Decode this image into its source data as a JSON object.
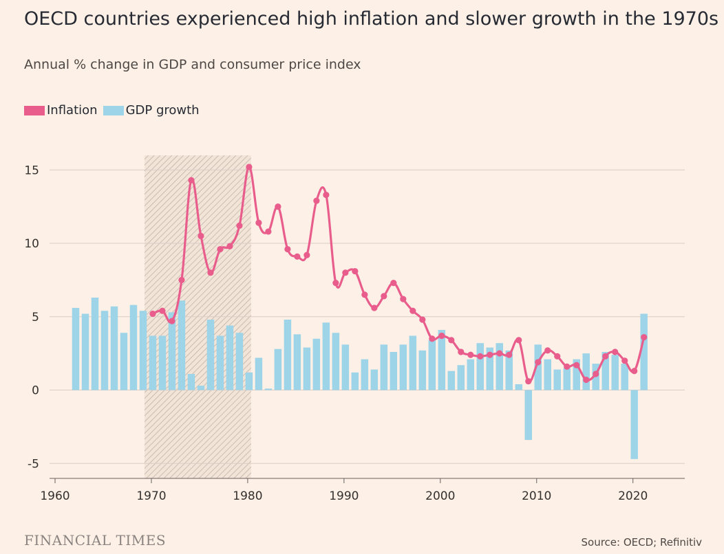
{
  "title": "OECD countries experienced high inflation and slower growth in the 1970s",
  "subtitle": "Annual % change in GDP and consumer price index",
  "brand": "FINANCIAL TIMES",
  "source": "Source: OECD; Refinitiv",
  "colors": {
    "background": "#fdf0e6",
    "inflation": "#e95d8c",
    "gdp": "#9dd4e8",
    "grid": "#d9cdc4",
    "shade_hatch": "#b8aca3"
  },
  "chart_data": {
    "type": "bar",
    "legend": [
      {
        "name": "Inflation",
        "color": "#e95d8c"
      },
      {
        "name": "GDP growth",
        "color": "#9dd4e8"
      }
    ],
    "legend_position": "top-left",
    "grid": true,
    "xlim": [
      1960,
      2025
    ],
    "ylim": [
      -6,
      16
    ],
    "x_ticks": [
      1960,
      1970,
      1980,
      1990,
      2000,
      2010,
      2020
    ],
    "y_ticks": [
      -5,
      0,
      5,
      10,
      15
    ],
    "shaded_region": [
      1970,
      1981
    ],
    "series": [
      {
        "name": "GDP growth",
        "type": "bar",
        "x": [
          1962,
          1963,
          1964,
          1965,
          1966,
          1967,
          1968,
          1969,
          1970,
          1971,
          1972,
          1973,
          1974,
          1975,
          1976,
          1977,
          1978,
          1979,
          1980,
          1981,
          1982,
          1983,
          1984,
          1985,
          1986,
          1987,
          1988,
          1989,
          1990,
          1991,
          1992,
          1993,
          1994,
          1995,
          1996,
          1997,
          1998,
          1999,
          2000,
          2001,
          2002,
          2003,
          2004,
          2005,
          2006,
          2007,
          2008,
          2009,
          2010,
          2011,
          2012,
          2013,
          2014,
          2015,
          2016,
          2017,
          2018,
          2019,
          2020,
          2021
        ],
        "values": [
          5.6,
          5.2,
          6.3,
          5.4,
          5.7,
          3.9,
          5.8,
          5.4,
          3.7,
          3.7,
          5.3,
          6.1,
          1.1,
          0.3,
          4.8,
          3.7,
          4.4,
          3.9,
          1.2,
          2.2,
          0.1,
          2.8,
          4.8,
          3.8,
          2.9,
          3.5,
          4.6,
          3.9,
          3.1,
          1.2,
          2.1,
          1.4,
          3.1,
          2.6,
          3.1,
          3.7,
          2.7,
          3.4,
          4.1,
          1.3,
          1.7,
          2.1,
          3.2,
          2.9,
          3.2,
          2.7,
          0.4,
          -3.4,
          3.1,
          2.1,
          1.4,
          1.5,
          2.1,
          2.5,
          1.8,
          2.6,
          2.4,
          1.8,
          -4.7,
          5.2
        ]
      },
      {
        "name": "Inflation",
        "type": "line",
        "x": [
          1970,
          1971,
          1972,
          1973,
          1974,
          1975,
          1976,
          1977,
          1978,
          1979,
          1980,
          1981,
          1982,
          1983,
          1984,
          1985,
          1986,
          1987,
          1988,
          1989,
          1990,
          1991,
          1992,
          1993,
          1994,
          1995,
          1996,
          1997,
          1998,
          1999,
          2000,
          2001,
          2002,
          2003,
          2004,
          2005,
          2006,
          2007,
          2008,
          2009,
          2010,
          2011,
          2012,
          2013,
          2014,
          2015,
          2016,
          2017,
          2018,
          2019,
          2020,
          2021
        ],
        "values": [
          5.2,
          5.4,
          4.7,
          7.5,
          14.3,
          10.5,
          8.0,
          9.6,
          9.8,
          11.2,
          15.2,
          11.4,
          10.8,
          12.5,
          9.6,
          9.1,
          9.2,
          12.9,
          13.3,
          7.3,
          8.0,
          8.1,
          6.5,
          5.6,
          6.4,
          7.3,
          6.2,
          5.4,
          4.8,
          3.5,
          3.7,
          3.4,
          2.6,
          2.4,
          2.3,
          2.4,
          2.5,
          2.4,
          3.4,
          0.6,
          1.9,
          2.7,
          2.3,
          1.6,
          1.7,
          0.7,
          1.1,
          2.3,
          2.6,
          2.0,
          1.3,
          3.6
        ]
      }
    ]
  }
}
